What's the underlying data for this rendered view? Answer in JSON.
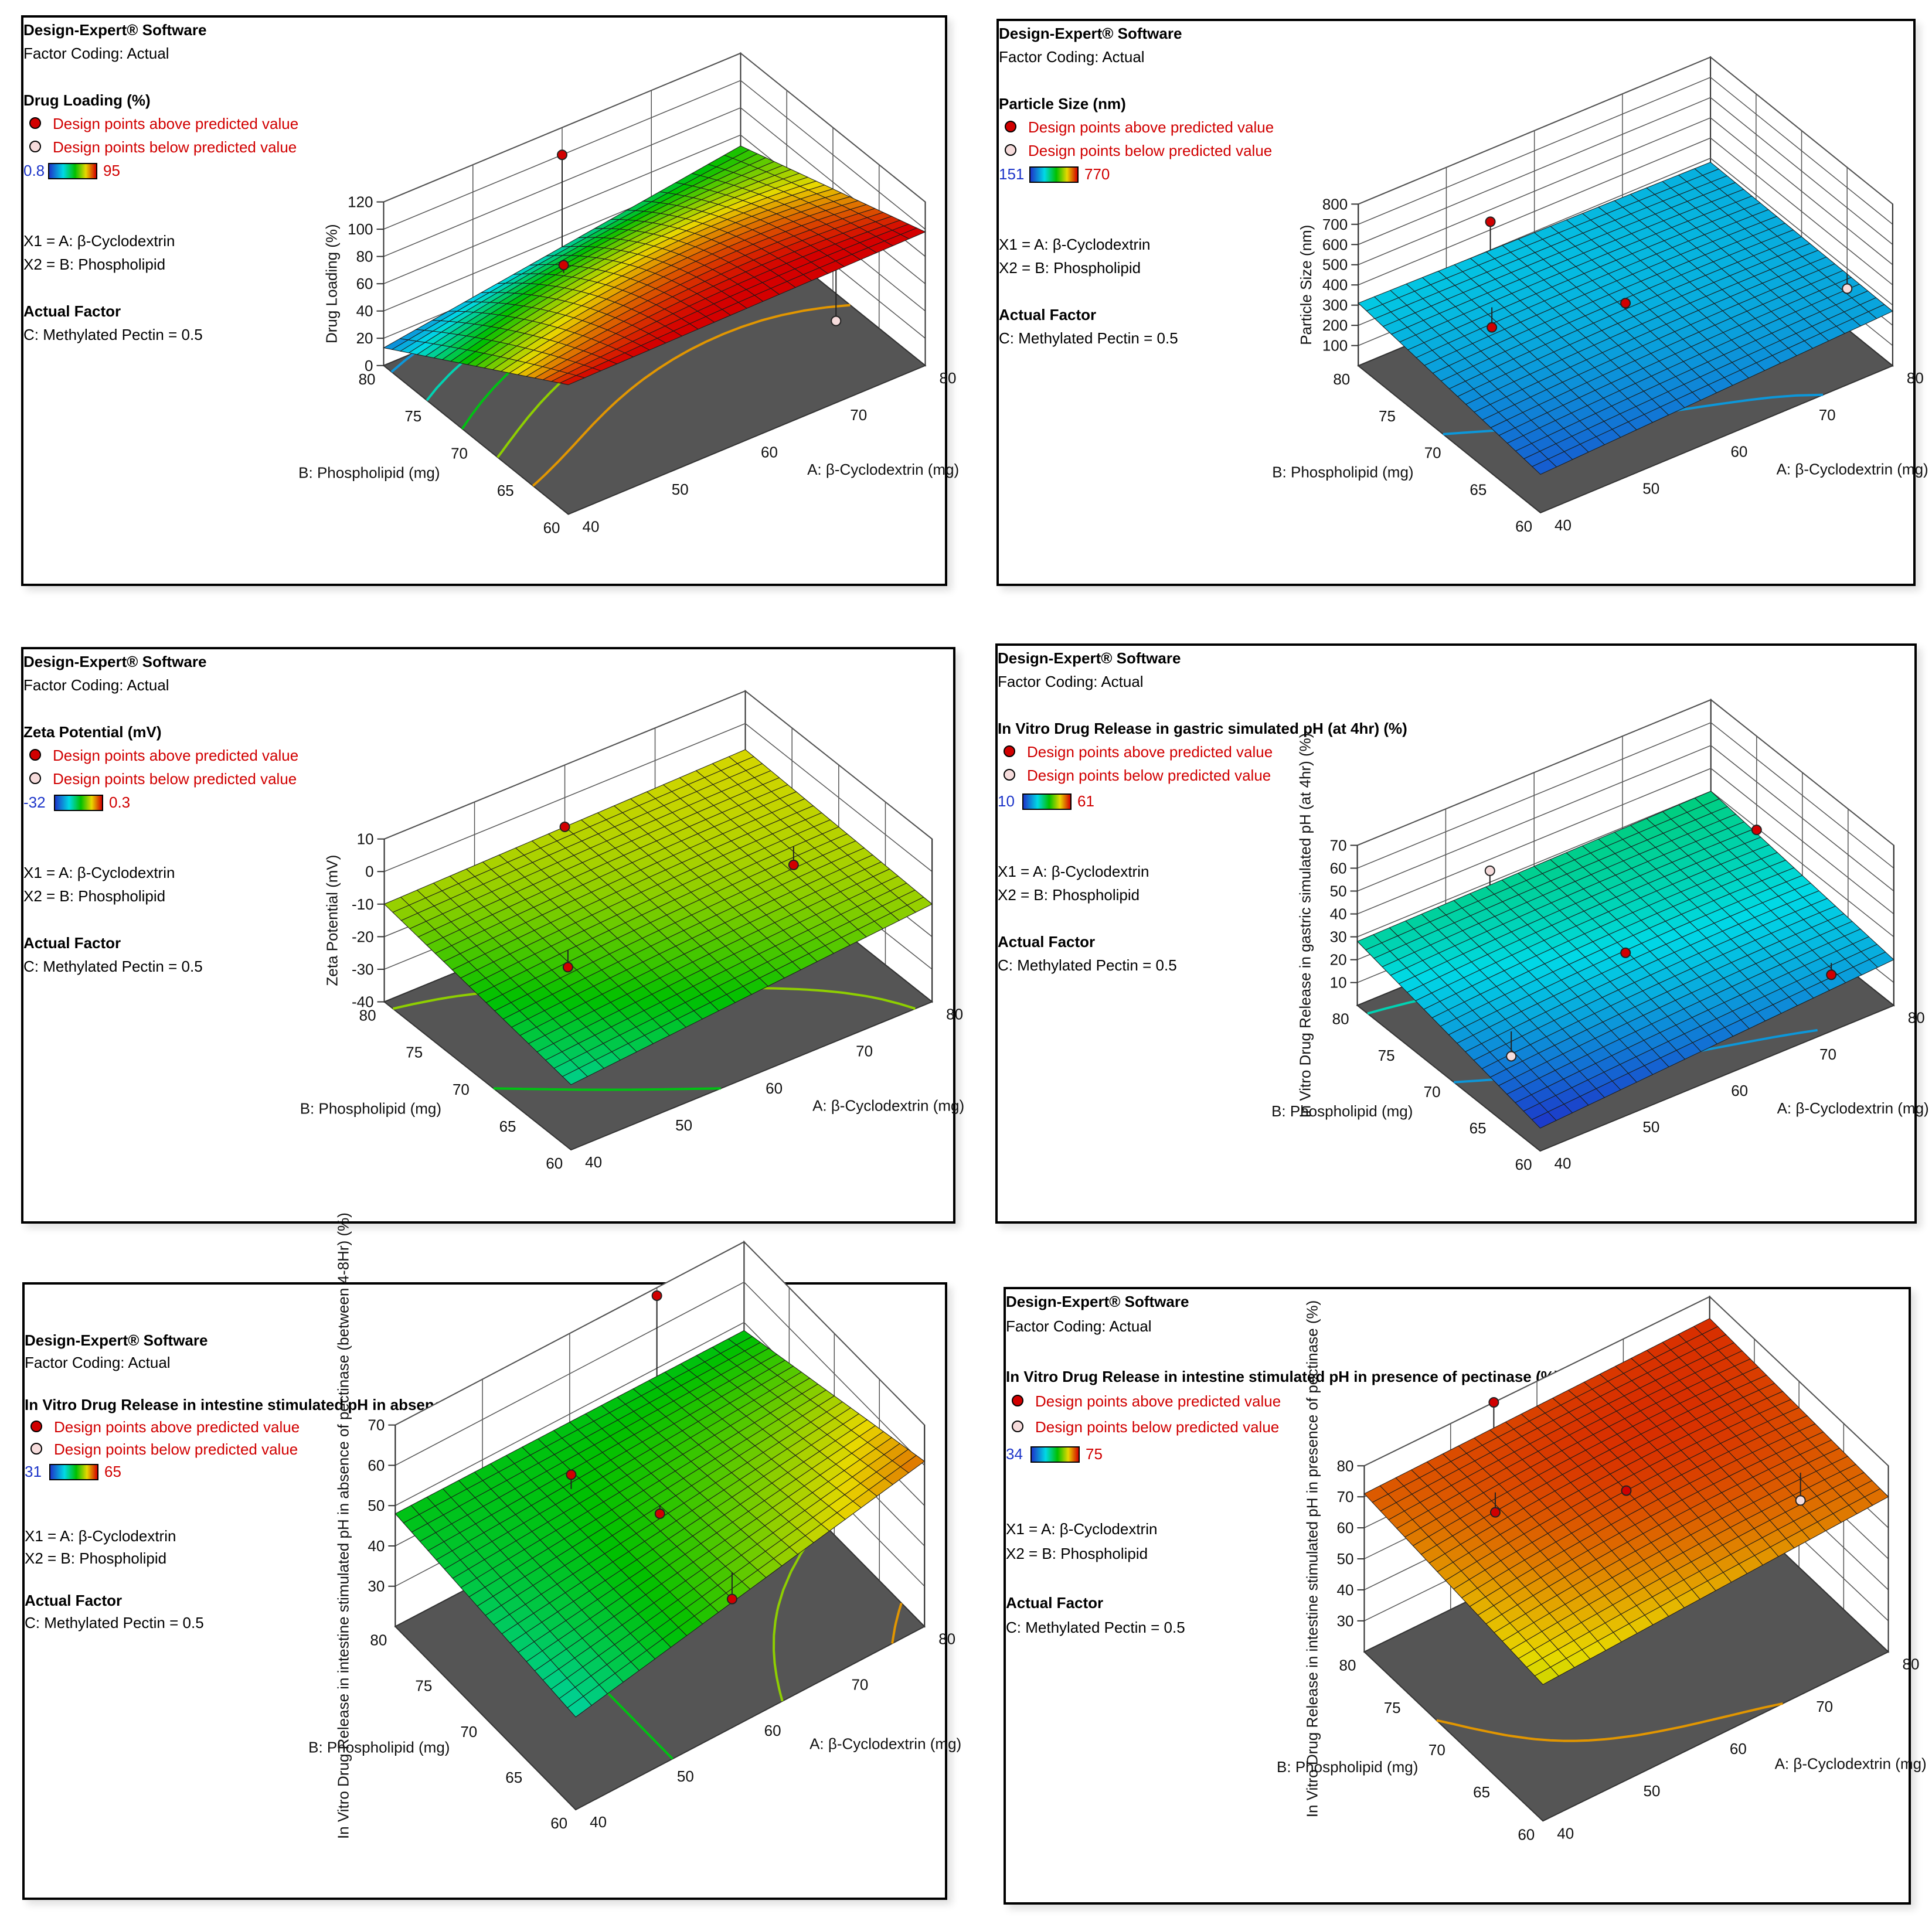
{
  "common": {
    "software": "Design-Expert® Software",
    "coding": "Factor Coding: Actual",
    "above_label": "Design points above predicted value",
    "below_label": "Design points below predicted value",
    "x1": "X1 = A: β-Cyclodextrin",
    "x2": "X2 = B: Phospholipid",
    "actual_factor": "Actual Factor",
    "factor_c": "C: Methylated Pectin = 0.5"
  },
  "panels": [
    {
      "response": "Drug Loading (%)",
      "range_min": "0.8",
      "range_max": "95"
    },
    {
      "response": "Particle Size (nm)",
      "range_min": "151",
      "range_max": "770"
    },
    {
      "response": "Zeta Potential (mV)",
      "range_min": "-32",
      "range_max": "0.3"
    },
    {
      "response": "In Vitro Drug Release in gastric simulated pH (at 4hr) (%)",
      "range_min": "10",
      "range_max": "61"
    },
    {
      "response": "In Vitro Drug Release in intestine stimulated pH in absence of pectinase (between 4-8Hr) (%)",
      "range_min": "31",
      "range_max": "65"
    },
    {
      "response": "In Vitro Drug Release in intestine stimulated pH in presence of pectinase (%)",
      "range_min": "34",
      "range_max": "75"
    }
  ],
  "chart_data": [
    {
      "type": "surface",
      "zlabel": "Drug Loading (%)",
      "xlabel": "A: β-Cyclodextrin (mg)",
      "ylabel": "B: Phospholipid (mg)",
      "x_ticks": [
        "40",
        "50",
        "60",
        "70",
        "80"
      ],
      "y_ticks": [
        "60",
        "65",
        "70",
        "75",
        "80"
      ],
      "z_ticks": [
        "0",
        "20",
        "40",
        "60",
        "80",
        "100",
        "120"
      ],
      "zlim": [
        0,
        120
      ],
      "color_range": [
        0.8,
        95
      ],
      "corners": {
        "a40_b60": 95,
        "a80_b60": 98,
        "a80_b80": 52,
        "a40_b80": 13
      },
      "center": 78,
      "design_points": [
        {
          "a": 60,
          "b": 80,
          "z": 100,
          "pos": "above"
        },
        {
          "a": 55,
          "b": 75,
          "z": 60,
          "pos": "above"
        },
        {
          "a": 70,
          "b": 60,
          "z": 60,
          "pos": "below"
        }
      ]
    },
    {
      "type": "surface",
      "zlabel": "Particle Size (nm)",
      "xlabel": "A: β-Cyclodextrin (mg)",
      "ylabel": "B: Phospholipid (mg)",
      "x_ticks": [
        "40",
        "50",
        "60",
        "70",
        "80"
      ],
      "y_ticks": [
        "60",
        "65",
        "70",
        "75",
        "80"
      ],
      "z_ticks": [
        "100",
        "200",
        "300",
        "400",
        "500",
        "600",
        "700",
        "800"
      ],
      "zlim": [
        0,
        800
      ],
      "color_range": [
        151,
        770
      ],
      "corners": {
        "a40_b60": 190,
        "a80_b60": 270,
        "a80_b80": 280,
        "a40_b80": 310
      },
      "center": 280,
      "design_points": [
        {
          "a": 55,
          "b": 80,
          "z": 440,
          "pos": "above"
        },
        {
          "a": 60,
          "b": 70,
          "z": 310,
          "pos": "above"
        },
        {
          "a": 50,
          "b": 75,
          "z": 190,
          "pos": "above"
        },
        {
          "a": 80,
          "b": 65,
          "z": 200,
          "pos": "below"
        }
      ]
    },
    {
      "type": "surface",
      "zlabel": "Zeta Potential (mV)",
      "xlabel": "A: β-Cyclodextrin (mg)",
      "ylabel": "B: Phospholipid (mg)",
      "x_ticks": [
        "40",
        "50",
        "60",
        "70",
        "80"
      ],
      "y_ticks": [
        "60",
        "65",
        "70",
        "75",
        "80"
      ],
      "z_ticks": [
        "-40",
        "-30",
        "-20",
        "-10",
        "0",
        "10"
      ],
      "zlim": [
        -40,
        10
      ],
      "color_range": [
        -32,
        0.3
      ],
      "corners": {
        "a40_b60": -20,
        "a80_b60": -10,
        "a80_b80": -8,
        "a40_b80": -10
      },
      "center": -11,
      "design_points": [
        {
          "a": 60,
          "b": 80,
          "z": -9,
          "pos": "above"
        },
        {
          "a": 50,
          "b": 70,
          "z": -18,
          "pos": "above"
        },
        {
          "a": 75,
          "b": 70,
          "z": -15,
          "pos": "above"
        }
      ]
    },
    {
      "type": "surface",
      "zlabel": "In Vitro Drug Release in gastric simulated pH (at 4hr) (%)",
      "xlabel": "A: β-Cyclodextrin (mg)",
      "ylabel": "B: Phospholipid (mg)",
      "x_ticks": [
        "40",
        "50",
        "60",
        "70",
        "80"
      ],
      "y_ticks": [
        "60",
        "65",
        "70",
        "75",
        "80"
      ],
      "z_ticks": [
        "10",
        "20",
        "30",
        "40",
        "50",
        "60",
        "70"
      ],
      "zlim": [
        0,
        70
      ],
      "color_range": [
        10,
        61
      ],
      "corners": {
        "a40_b60": 10,
        "a80_b60": 20,
        "a80_b80": 30,
        "a40_b80": 28
      },
      "center": 24,
      "design_points": [
        {
          "a": 60,
          "b": 70,
          "z": 23,
          "pos": "above"
        },
        {
          "a": 80,
          "b": 75,
          "z": 29,
          "pos": "above"
        },
        {
          "a": 75,
          "b": 62,
          "z": 15,
          "pos": "above"
        },
        {
          "a": 55,
          "b": 80,
          "z": 35,
          "pos": "below"
        },
        {
          "a": 45,
          "b": 68,
          "z": 8,
          "pos": "below"
        }
      ]
    },
    {
      "type": "surface",
      "zlabel": "In Vitro Drug Release in intestine stimulated pH in absence of pectinase (between 4-8Hr) (%)",
      "xlabel": "A: β-Cyclodextrin (mg)",
      "ylabel": "B: Phospholipid (mg)",
      "x_ticks": [
        "40",
        "50",
        "60",
        "70",
        "80"
      ],
      "y_ticks": [
        "60",
        "65",
        "70",
        "75",
        "80"
      ],
      "z_ticks": [
        "30",
        "40",
        "50",
        "60",
        "70"
      ],
      "zlim": [
        20,
        70
      ],
      "color_range": [
        31,
        65
      ],
      "corners": {
        "a40_b60": 43,
        "a80_b60": 61,
        "a80_b80": 48,
        "a40_b80": 48
      },
      "center": 50,
      "design_points": [
        {
          "a": 70,
          "b": 80,
          "z": 68,
          "pos": "above"
        },
        {
          "a": 55,
          "b": 75,
          "z": 52,
          "pos": "above"
        },
        {
          "a": 60,
          "b": 70,
          "z": 48,
          "pos": "above"
        },
        {
          "a": 60,
          "b": 62,
          "z": 45,
          "pos": "above"
        }
      ]
    },
    {
      "type": "surface",
      "zlabel": "In Vitro Drug Release in intestine stimulated pH in presence of pectinase (%)",
      "xlabel": "A: β-Cyclodextrin (mg)",
      "ylabel": "B: Phospholipid (mg)",
      "x_ticks": [
        "40",
        "50",
        "60",
        "70",
        "80"
      ],
      "y_ticks": [
        "60",
        "65",
        "70",
        "75",
        "80"
      ],
      "z_ticks": [
        "30",
        "40",
        "50",
        "60",
        "70",
        "80"
      ],
      "zlim": [
        20,
        80
      ],
      "color_range": [
        34,
        75
      ],
      "corners": {
        "a40_b60": 64,
        "a80_b60": 70,
        "a80_b80": 73,
        "a40_b80": 71
      },
      "center": 72,
      "design_points": [
        {
          "a": 55,
          "b": 80,
          "z": 80,
          "pos": "above"
        },
        {
          "a": 60,
          "b": 70,
          "z": 72,
          "pos": "above"
        },
        {
          "a": 50,
          "b": 75,
          "z": 65,
          "pos": "above"
        },
        {
          "a": 75,
          "b": 65,
          "z": 62,
          "pos": "below"
        }
      ]
    }
  ]
}
